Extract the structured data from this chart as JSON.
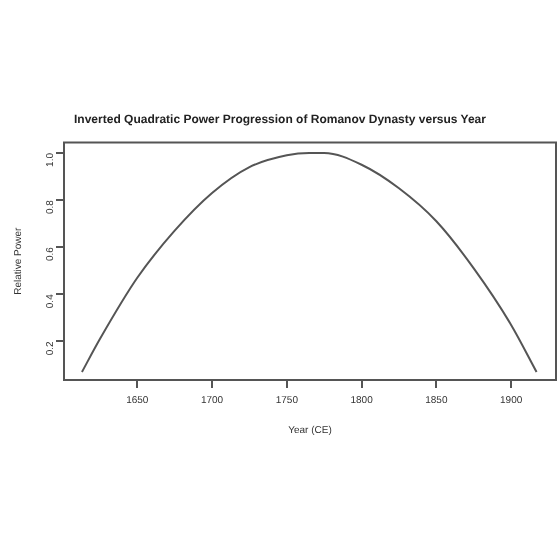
{
  "chart_data": {
    "type": "line",
    "title": "Inverted Quadratic Power Progression of Romanov Dynasty versus Year",
    "xlabel": "Year (CE)",
    "ylabel": "Relative Power",
    "x": [
      1613,
      1625,
      1650,
      1675,
      1700,
      1725,
      1750,
      1765,
      1775,
      1800,
      1825,
      1850,
      1875,
      1900,
      1917
    ],
    "series": [
      {
        "color": "#555555",
        "values": [
          0.07,
          0.21,
          0.47,
          0.67,
          0.83,
          0.94,
          0.99,
          1.0,
          1.0,
          0.95,
          0.85,
          0.71,
          0.51,
          0.27,
          0.07
        ]
      }
    ],
    "xlim": [
      1601,
      1930
    ],
    "xticks": [
      1650,
      1700,
      1750,
      1800,
      1850,
      1900
    ],
    "ylim": [
      0.036,
      1.045
    ],
    "yticks": [
      {
        "value": 0.2,
        "label": "0.2"
      },
      {
        "value": 0.4,
        "label": "0.4"
      },
      {
        "value": 0.6,
        "label": "0.6"
      },
      {
        "value": 0.8,
        "label": "0.8"
      },
      {
        "value": 1.0,
        "label": "1.0"
      }
    ],
    "grid": false,
    "legend": false,
    "marker": "none",
    "line_style": "solid"
  }
}
